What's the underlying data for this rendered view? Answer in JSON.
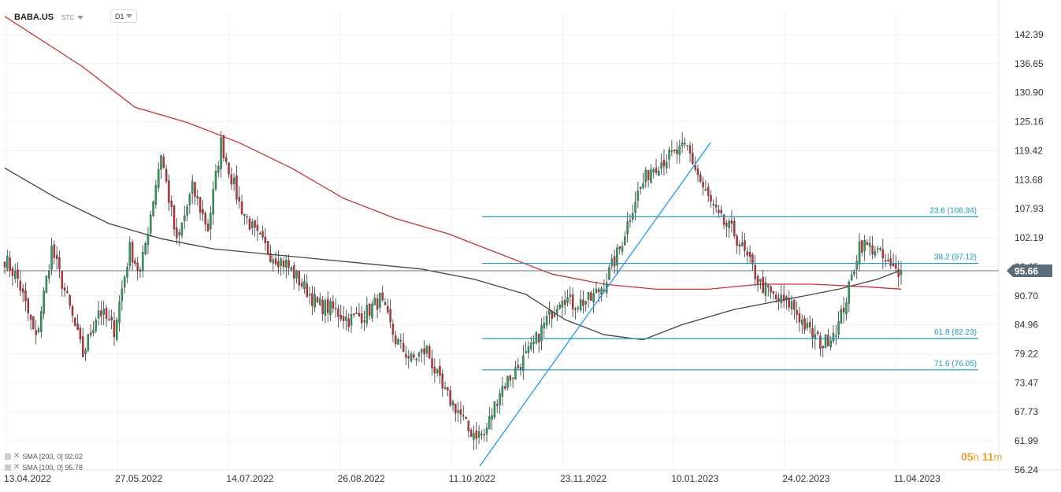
{
  "header": {
    "symbol": "BABA.US",
    "asset_class": "STC",
    "timeframe": "D1"
  },
  "legend": [
    {
      "text": "SMA [200, 0] 92.02",
      "color": "#d32f2f"
    },
    {
      "text": "SMA [100, 0] 95.78",
      "color": "#444444"
    }
  ],
  "timer": {
    "hours": "05",
    "h_unit": "h",
    "minutes": "11",
    "m_unit": "m"
  },
  "chart_data": {
    "type": "candlestick",
    "price_ticks": [
      142.39,
      136.65,
      130.9,
      125.16,
      119.42,
      113.68,
      107.93,
      102.19,
      96.45,
      90.7,
      84.96,
      79.22,
      73.47,
      67.73,
      61.99,
      56.24
    ],
    "price_tick_labels": [
      "142.39",
      "136.65",
      "130.90",
      "125.16",
      "119.42",
      "113.68",
      "107.93",
      "102.19",
      "96.45",
      "90.70",
      "84.96",
      "79.22",
      "73.47",
      "67.73",
      "61.99",
      "56.24"
    ],
    "date_ticks": [
      "13.04.2022",
      "27.05.2022",
      "14.07.2022",
      "26.08.2022",
      "11.10.2022",
      "23.11.2022",
      "10.01.2023",
      "24.02.2023",
      "11.04.2023"
    ],
    "ylim": [
      56.24,
      145.5
    ],
    "bars_total": 251,
    "current_price": 95.66,
    "current_price_label": "95.66",
    "anchors": [
      [
        0,
        98
      ],
      [
        5,
        94
      ],
      [
        12,
        82
      ],
      [
        18,
        100
      ],
      [
        24,
        90
      ],
      [
        30,
        79
      ],
      [
        36,
        88
      ],
      [
        42,
        84
      ],
      [
        48,
        100
      ],
      [
        52,
        95
      ],
      [
        60,
        119
      ],
      [
        66,
        101
      ],
      [
        72,
        112
      ],
      [
        78,
        104
      ],
      [
        83,
        121
      ],
      [
        90,
        109
      ],
      [
        96,
        103
      ],
      [
        102,
        99
      ],
      [
        108,
        97
      ],
      [
        114,
        93
      ],
      [
        120,
        89
      ],
      [
        126,
        88
      ],
      [
        132,
        86
      ],
      [
        138,
        87
      ],
      [
        144,
        90
      ],
      [
        150,
        82
      ],
      [
        156,
        78
      ],
      [
        162,
        80
      ],
      [
        168,
        72
      ],
      [
        174,
        68
      ],
      [
        178,
        64
      ],
      [
        184,
        63
      ],
      [
        190,
        72
      ],
      [
        196,
        76
      ],
      [
        202,
        80
      ],
      [
        208,
        86
      ],
      [
        214,
        91
      ],
      [
        218,
        89
      ],
      [
        225,
        90
      ],
      [
        230,
        93
      ],
      [
        236,
        100
      ],
      [
        242,
        110
      ],
      [
        248,
        116
      ],
      [
        254,
        118
      ],
      [
        262,
        120
      ],
      [
        268,
        112
      ],
      [
        274,
        106
      ],
      [
        280,
        103
      ],
      [
        285,
        98
      ],
      [
        290,
        93
      ],
      [
        296,
        90
      ],
      [
        302,
        89
      ],
      [
        308,
        84
      ],
      [
        314,
        81
      ],
      [
        320,
        85
      ],
      [
        324,
        92
      ],
      [
        328,
        101
      ],
      [
        334,
        100
      ],
      [
        340,
        96
      ],
      [
        344,
        95.66
      ]
    ],
    "fib_levels": [
      {
        "level": "23.6",
        "price": 106.34,
        "label": "23.6 (106.34)"
      },
      {
        "level": "38.2",
        "price": 97.12,
        "label": "38.2 (97.12)"
      },
      {
        "level": "61.8",
        "price": 82.23,
        "label": "61.8 (82.23)"
      },
      {
        "level": "71.6",
        "price": 76.05,
        "label": "71.6 (76.05)"
      }
    ],
    "trend_line": {
      "from_price": 57.0,
      "to_price": 121.0
    },
    "sma200": [
      [
        0,
        146
      ],
      [
        30,
        136
      ],
      [
        50,
        128
      ],
      [
        70,
        125
      ],
      [
        90,
        121
      ],
      [
        110,
        116
      ],
      [
        130,
        110
      ],
      [
        150,
        106
      ],
      [
        170,
        103
      ],
      [
        190,
        99
      ],
      [
        210,
        95
      ],
      [
        230,
        93
      ],
      [
        250,
        92
      ],
      [
        270,
        92
      ],
      [
        290,
        93
      ],
      [
        310,
        93
      ],
      [
        330,
        92.5
      ],
      [
        344,
        92.02
      ]
    ],
    "sma100": [
      [
        0,
        116
      ],
      [
        20,
        110
      ],
      [
        40,
        105
      ],
      [
        60,
        102
      ],
      [
        80,
        100
      ],
      [
        100,
        99
      ],
      [
        120,
        98
      ],
      [
        140,
        97
      ],
      [
        160,
        96
      ],
      [
        180,
        94
      ],
      [
        200,
        91
      ],
      [
        215,
        86
      ],
      [
        230,
        83
      ],
      [
        245,
        82
      ],
      [
        260,
        85
      ],
      [
        280,
        88
      ],
      [
        300,
        90
      ],
      [
        320,
        92
      ],
      [
        335,
        94
      ],
      [
        344,
        95.78
      ]
    ],
    "colors": {
      "up": "#26a65b",
      "down": "#d32f2f",
      "sma200": "#d32f2f",
      "sma100": "#444444",
      "fib": "#1a9bbf",
      "trend": "#2196f3",
      "price_tag": "#5a6b7a",
      "timer": "#f0a030"
    }
  }
}
